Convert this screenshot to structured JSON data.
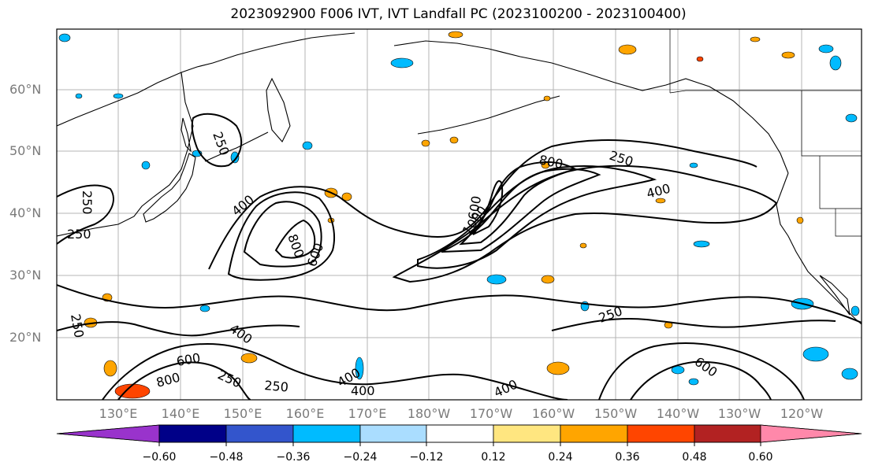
{
  "title": "2023092900 F006 IVT, IVT Landfall PC (2023100200 - 2023100400)",
  "lat_labels": [
    "60°N",
    "50°N",
    "40°N",
    "30°N",
    "20°N"
  ],
  "lon_labels": [
    "130°E",
    "140°E",
    "150°E",
    "160°E",
    "170°E",
    "180°W",
    "170°W",
    "160°W",
    "150°W",
    "140°W",
    "130°W",
    "120°W"
  ],
  "contour_labels": [
    "250",
    "250",
    "250",
    "250",
    "250",
    "250",
    "250",
    "250",
    "400",
    "400",
    "400",
    "400",
    "400",
    "400",
    "600",
    "600",
    "600",
    "600",
    "800",
    "800",
    "800",
    "1000"
  ],
  "colorbar": {
    "colors": [
      "#9933cc",
      "#000088",
      "#3355cc",
      "#00bbff",
      "#aaddff",
      "#ffffff",
      "#ffe680",
      "#ffa500",
      "#ff4500",
      "#b22222",
      "#ff88aa"
    ],
    "tick_labels": [
      "−0.60",
      "−0.48",
      "−0.36",
      "−0.24",
      "−0.12",
      "0.12",
      "0.24",
      "0.36",
      "0.48",
      "0.60"
    ]
  }
}
